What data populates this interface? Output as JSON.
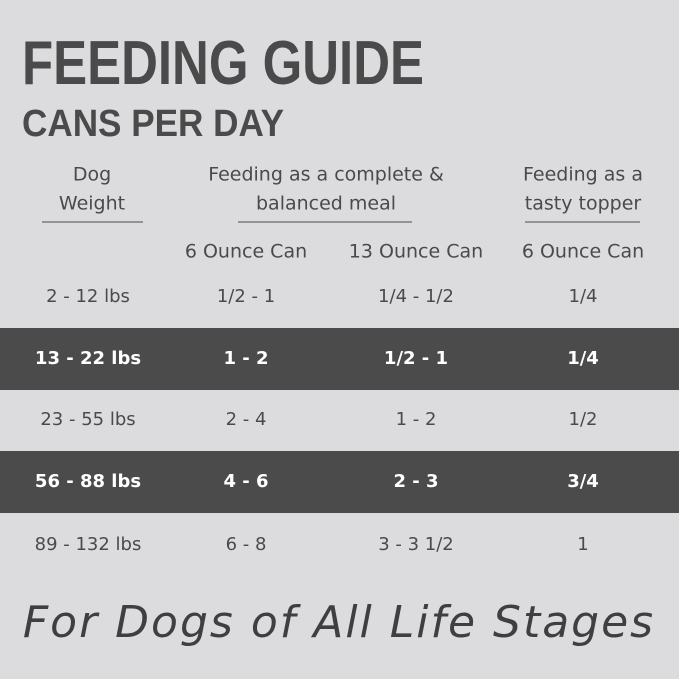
{
  "header": {
    "title": "FEEDING GUIDE",
    "subtitle": "CANS PER DAY"
  },
  "table": {
    "group_headers": [
      [
        "Dog",
        "Weight"
      ],
      [
        "Feeding as a complete &",
        "balanced meal"
      ],
      [
        "Feeding as a",
        "tasty topper"
      ]
    ],
    "columns": [
      "6 Ounce Can",
      "13 Ounce Can",
      "6 Ounce Can"
    ],
    "rows": [
      [
        "2 - 12 lbs",
        "1/2 - 1",
        "1/4 - 1/2",
        "1/4"
      ],
      [
        "13 - 22 lbs",
        "1 - 2",
        "1/2 - 1",
        "1/4"
      ],
      [
        "23 - 55 lbs",
        "2 - 4",
        "1 - 2",
        "1/2"
      ],
      [
        "56 - 88 lbs",
        "4 - 6",
        "2 - 3",
        "3/4"
      ],
      [
        "89 - 132 lbs",
        "6 - 8",
        "3 - 3 1/2",
        "1"
      ]
    ]
  },
  "footer": {
    "tagline": "For Dogs of All Life Stages"
  }
}
